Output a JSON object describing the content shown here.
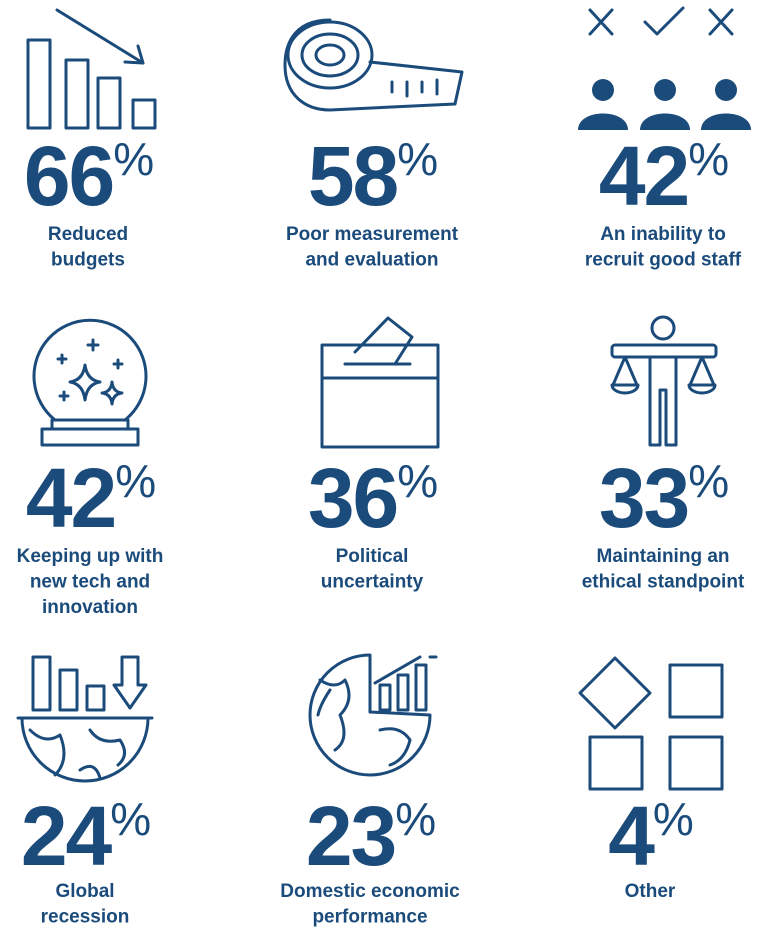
{
  "items": [
    {
      "value": 66,
      "unit": "%",
      "label": [
        "Reduced",
        "budgets"
      ]
    },
    {
      "value": 58,
      "unit": "%",
      "label": [
        "Poor measurement",
        "and evaluation"
      ]
    },
    {
      "value": 42,
      "unit": "%",
      "label": [
        "An inability to",
        "recruit good staff"
      ]
    },
    {
      "value": 42,
      "unit": "%",
      "label": [
        "Keeping up with",
        "new tech and",
        "innovation"
      ]
    },
    {
      "value": 36,
      "unit": "%",
      "label": [
        "Political",
        "uncertainty"
      ]
    },
    {
      "value": 33,
      "unit": "%",
      "label": [
        "Maintaining an",
        "ethical standpoint"
      ]
    },
    {
      "value": 24,
      "unit": "%",
      "label": [
        "Global",
        "recession"
      ]
    },
    {
      "value": 23,
      "unit": "%",
      "label": [
        "Domestic economic",
        "performance"
      ]
    },
    {
      "value": 4,
      "unit": "%",
      "label": [
        "Other"
      ]
    }
  ]
}
